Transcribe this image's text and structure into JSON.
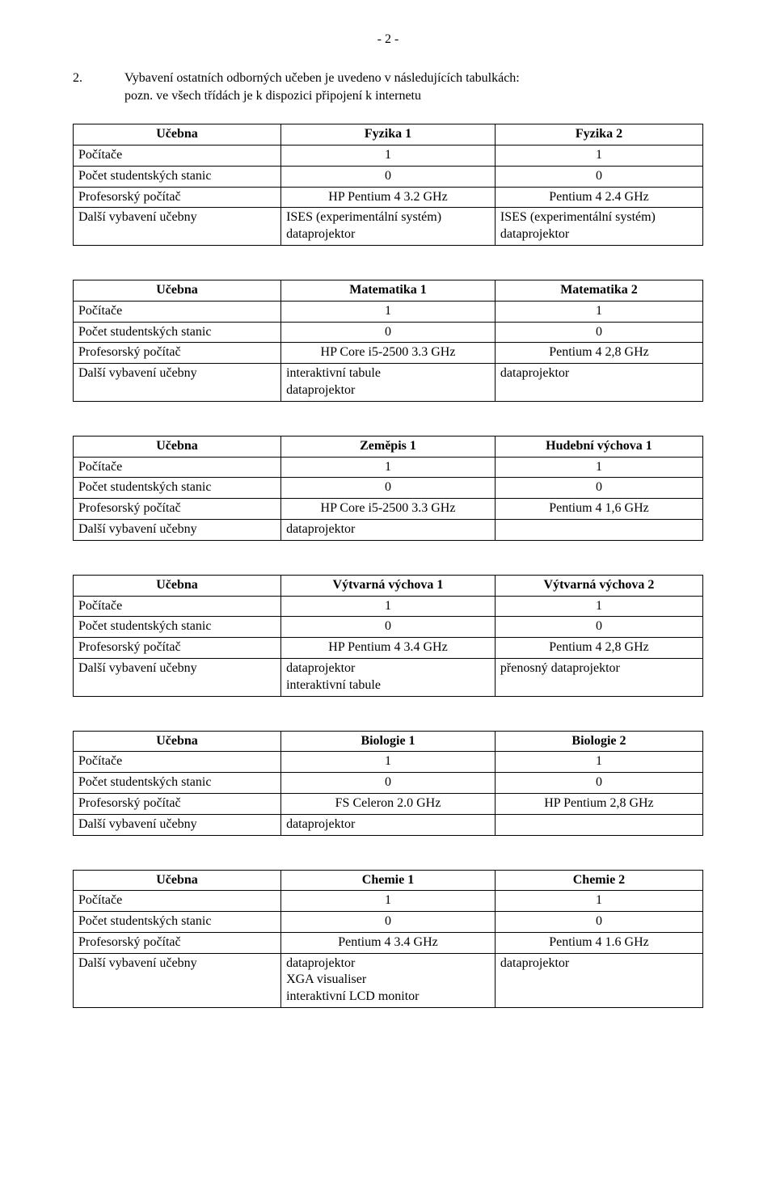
{
  "page_number": "- 2 -",
  "intro": {
    "number": "2.",
    "line1": "Vybavení ostatních odborných učeben je uvedeno v následujících tabulkách:",
    "line2": "pozn. ve všech třídách je k dispozici připojení k internetu"
  },
  "row_labels": {
    "ucebna": "Učebna",
    "pocitace": "Počítače",
    "stanice": "Počet studentských stanic",
    "prof": "Profesorský počítač",
    "dalsi": "Další vybavení učebny"
  },
  "tables": [
    {
      "h1": "Fyzika 1",
      "h2": "Fyzika 2",
      "pocitace1": "1",
      "pocitace2": "1",
      "stanice1": "0",
      "stanice2": "0",
      "prof1": "HP Pentium 4 3.2 GHz",
      "prof2": "Pentium 4 2.4 GHz",
      "dalsi1": "ISES (experimentální systém)\ndataprojektor",
      "dalsi2": "ISES (experimentální systém)\ndataprojektor"
    },
    {
      "h1": "Matematika 1",
      "h2": "Matematika 2",
      "pocitace1": "1",
      "pocitace2": "1",
      "stanice1": "0",
      "stanice2": "0",
      "prof1": "HP Core i5-2500 3.3 GHz",
      "prof2": "Pentium 4 2,8 GHz",
      "dalsi1": "interaktivní tabule\ndataprojektor",
      "dalsi2": "dataprojektor"
    },
    {
      "h1": "Zeměpis 1",
      "h2": "Hudební výchova 1",
      "pocitace1": "1",
      "pocitace2": "1",
      "stanice1": "0",
      "stanice2": "0",
      "prof1": "HP Core i5-2500 3.3 GHz",
      "prof2": "Pentium 4 1,6 GHz",
      "dalsi1": "dataprojektor",
      "dalsi2": ""
    },
    {
      "h1": "Výtvarná výchova 1",
      "h2": "Výtvarná výchova 2",
      "pocitace1": "1",
      "pocitace2": "1",
      "stanice1": "0",
      "stanice2": "0",
      "prof1": "HP Pentium 4 3.4 GHz",
      "prof2": "Pentium 4 2,8 GHz",
      "dalsi1": "dataprojektor\ninteraktivní tabule",
      "dalsi2": "přenosný dataprojektor"
    },
    {
      "h1": "Biologie 1",
      "h2": "Biologie 2",
      "pocitace1": "1",
      "pocitace2": "1",
      "stanice1": "0",
      "stanice2": "0",
      "prof1": "FS Celeron 2.0 GHz",
      "prof2": "HP Pentium 2,8 GHz",
      "dalsi1": "dataprojektor",
      "dalsi2": ""
    },
    {
      "h1": "Chemie 1",
      "h2": "Chemie 2",
      "pocitace1": "1",
      "pocitace2": "1",
      "stanice1": "0",
      "stanice2": "0",
      "prof1": "Pentium 4 3.4 GHz",
      "prof2": "Pentium 4 1.6 GHz",
      "dalsi1": "dataprojektor\nXGA visualiser\ninteraktivní LCD monitor",
      "dalsi2": "dataprojektor"
    }
  ]
}
